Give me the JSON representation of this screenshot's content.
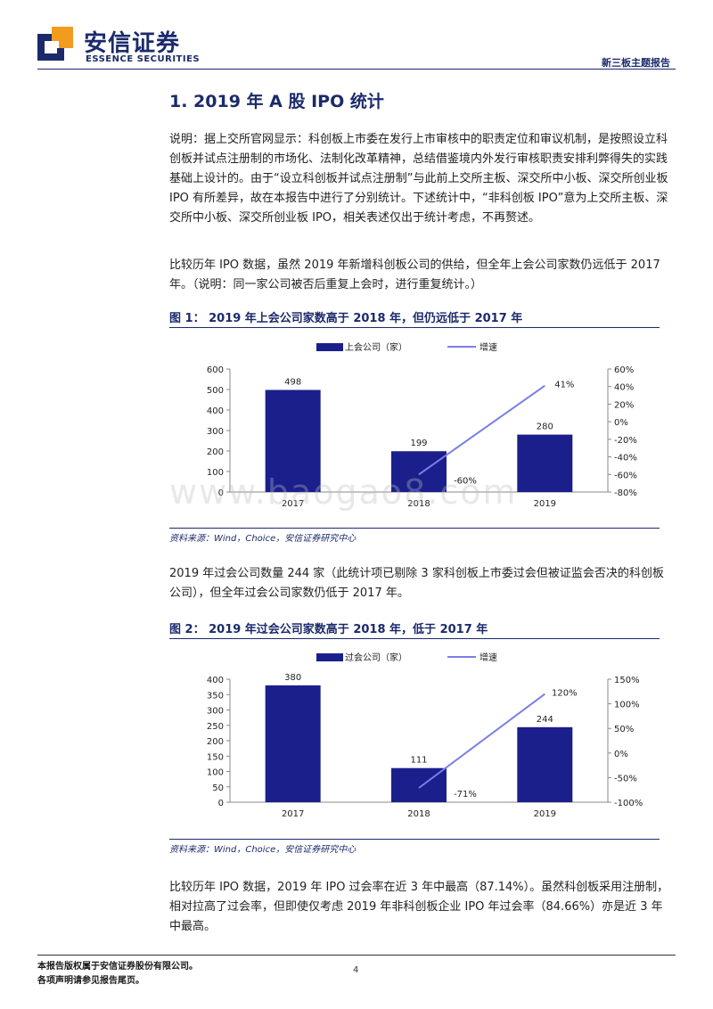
{
  "header": {
    "logo_cn": "安信证券",
    "logo_en": "ESSENCE SECURITIES",
    "report_type": "新三板主题报告"
  },
  "section_title": "1. 2019 年 A 股 IPO 统计",
  "paragraphs": {
    "p1": "说明：据上交所官网显示：科创板上市委在发行上市审核中的职责定位和审议机制，是按照设立科创板并试点注册制的市场化、法制化改革精神，总结借鉴境内外发行审核职责安排利弊得失的实践基础上设计的。由于“设立科创板并试点注册制”与此前上交所主板、深交所中小板、深交所创业板 IPO 有所差异，故在本报告中进行了分别统计。下述统计中，“非科创板 IPO”意为上交所主板、深交所中小板、深交所创业板 IPO，相关表述仅出于统计考虑，不再赘述。",
    "p2": "比较历年 IPO 数据，虽然 2019 年新增科创板公司的供给，但全年上会公司家数仍远低于 2017 年。（说明：同一家公司被否后重复上会时，进行重复统计。）",
    "p3": "2019 年过会公司数量 244 家（此统计项已剔除 3 家科创板上市委过会但被证监会否决的科创板公司），但全年过会公司家数仍低于 2017 年。",
    "p4": "比较历年 IPO 数据，2019 年 IPO 过会率在近 3 年中最高（87.14%）。虽然科创板采用注册制，相对拉高了过会率，但即使仅考虑 2019 年非科创板企业 IPO 年过会率（84.66%）亦是近 3 年中最高。"
  },
  "figures": {
    "fig1": {
      "title": "图 1：  2019 年上会公司家数高于 2018 年，但仍远低于 2017 年",
      "source": "资料来源：Wind，Choice，安信证券研究中心"
    },
    "fig2": {
      "title": "图 2：  2019 年过会公司家数高于 2018 年，低于 2017 年",
      "source": "资料来源：Wind，Choice，安信证券研究中心"
    }
  },
  "watermark": "www.baogao8.com",
  "footer": {
    "line1": "本报告版权属于安信证券股份有限公司。",
    "line2": "各项声明请参见报告尾页。",
    "page_number": "4"
  },
  "colors": {
    "brand_navy": "#1b2a6b",
    "bar": "#1a1f8c",
    "line": "#7b7fe8"
  },
  "chart_data": [
    {
      "type": "bar",
      "categories": [
        "2017",
        "2018",
        "2019"
      ],
      "series": [
        {
          "name": "上会公司（家）",
          "type": "bar",
          "axis": "left",
          "values": [
            498,
            199,
            280
          ],
          "labels": [
            "498",
            "199",
            "280"
          ]
        },
        {
          "name": "增速",
          "type": "line",
          "axis": "right",
          "values": [
            null,
            -60,
            41
          ],
          "labels": [
            "",
            "-60%",
            "41%"
          ]
        }
      ],
      "ylim": [
        0,
        600
      ],
      "yticks": [
        0,
        100,
        200,
        300,
        400,
        500,
        600
      ],
      "y2lim": [
        -80,
        60
      ],
      "y2ticks": [
        "-80%",
        "-60%",
        "-40%",
        "-20%",
        "0%",
        "20%",
        "40%",
        "60%"
      ],
      "legend": "top-center",
      "grid": false
    },
    {
      "type": "bar",
      "categories": [
        "2017",
        "2018",
        "2019"
      ],
      "series": [
        {
          "name": "过会公司（家）",
          "type": "bar",
          "axis": "left",
          "values": [
            380,
            111,
            244
          ],
          "labels": [
            "380",
            "111",
            "244"
          ]
        },
        {
          "name": "增速",
          "type": "line",
          "axis": "right",
          "values": [
            null,
            -71,
            120
          ],
          "labels": [
            "",
            "-71%",
            "120%"
          ]
        }
      ],
      "ylim": [
        0,
        400
      ],
      "yticks": [
        0,
        50,
        100,
        150,
        200,
        250,
        300,
        350,
        400
      ],
      "y2lim": [
        -100,
        150
      ],
      "y2ticks": [
        "-100%",
        "-50%",
        "0%",
        "50%",
        "100%",
        "150%"
      ],
      "legend": "top-center",
      "grid": false
    }
  ]
}
